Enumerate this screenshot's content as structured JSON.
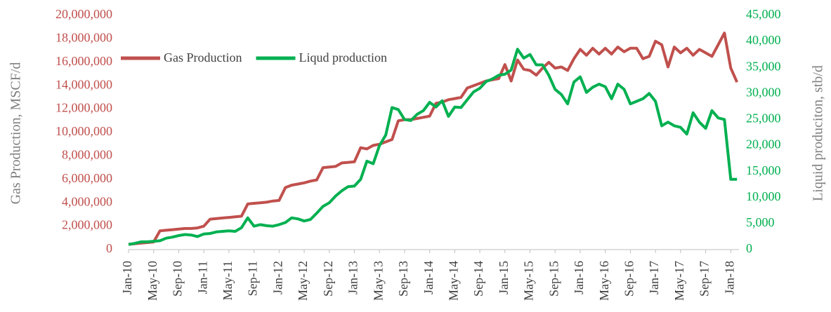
{
  "chart_data": {
    "type": "line",
    "legend": "top-left",
    "y_label": "Gas Production, MSCF/d",
    "y2_label": "Liquid produciton, stb/d",
    "categories": [
      "Jan-10",
      null,
      null,
      null,
      "May-10",
      null,
      null,
      null,
      "Sep-10",
      null,
      null,
      null,
      "Jan-11",
      null,
      null,
      null,
      "May-11",
      null,
      null,
      null,
      "Sep-11",
      null,
      null,
      null,
      "Jan-12",
      null,
      null,
      null,
      "May-12",
      null,
      null,
      null,
      "Sep-12",
      null,
      null,
      null,
      "Jan-13",
      null,
      null,
      null,
      "May-13",
      null,
      null,
      null,
      "Sep-13",
      null,
      null,
      null,
      "Jan-14",
      null,
      null,
      null,
      "May-14",
      null,
      null,
      null,
      "Sep-14",
      null,
      null,
      null,
      "Jan-15",
      null,
      null,
      null,
      "May-15",
      null,
      null,
      null,
      "Sep-15",
      null,
      null,
      null,
      "Jan-16",
      null,
      null,
      null,
      "May-16",
      null,
      null,
      null,
      "Sep-16",
      null,
      null,
      null,
      "Jan-17",
      null,
      null,
      null,
      "May-17",
      null,
      null,
      null,
      "Sep-17",
      null,
      null,
      null,
      "Jan-18",
      null
    ],
    "series": [
      {
        "name": "Gas Production",
        "color": "#c0504d",
        "axis": "y",
        "values": [
          450000,
          500000,
          550000,
          600000,
          650000,
          1600000,
          1650000,
          1700000,
          1750000,
          1800000,
          1800000,
          1850000,
          2000000,
          2600000,
          2650000,
          2700000,
          2750000,
          2800000,
          2850000,
          3900000,
          3950000,
          4000000,
          4050000,
          4150000,
          4200000,
          5300000,
          5500000,
          5600000,
          5700000,
          5850000,
          5950000,
          7000000,
          7050000,
          7100000,
          7400000,
          7450000,
          7500000,
          8700000,
          8600000,
          8900000,
          9000000,
          9200000,
          9400000,
          11000000,
          11100000,
          11100000,
          11200000,
          11300000,
          11400000,
          12500000,
          12600000,
          12800000,
          12900000,
          13000000,
          13800000,
          14000000,
          14200000,
          14400000,
          14500000,
          14600000,
          15800000,
          14400000,
          16200000,
          15400000,
          15300000,
          14900000,
          15500000,
          16000000,
          15500000,
          15600000,
          15300000,
          16300000,
          17100000,
          16600000,
          17200000,
          16700000,
          17200000,
          16700000,
          17300000,
          16900000,
          17200000,
          17200000,
          16300000,
          16500000,
          17800000,
          17500000,
          15600000,
          17300000,
          16800000,
          17200000,
          16600000,
          17100000,
          16800000,
          16500000,
          17500000,
          18500000,
          15500000,
          14300000
        ]
      },
      {
        "name": "Liqud production",
        "color": "#00b050",
        "axis": "y2",
        "values": [
          1000,
          1200,
          1500,
          1500,
          1600,
          1700,
          2200,
          2400,
          2700,
          2900,
          2800,
          2500,
          3000,
          3100,
          3400,
          3500,
          3600,
          3500,
          4200,
          6100,
          4500,
          4800,
          4600,
          4500,
          4800,
          5200,
          6100,
          5900,
          5500,
          5800,
          7000,
          8300,
          9000,
          10300,
          11300,
          12100,
          12200,
          13500,
          17000,
          16500,
          20000,
          22000,
          27300,
          26900,
          25000,
          24800,
          26000,
          26700,
          28300,
          27400,
          28600,
          25600,
          27400,
          27300,
          28800,
          30300,
          31000,
          32300,
          32800,
          33500,
          33700,
          34500,
          38500,
          36800,
          37500,
          35500,
          35500,
          33500,
          30800,
          29800,
          28000,
          32200,
          33200,
          30200,
          31200,
          31800,
          31300,
          29000,
          31800,
          30800,
          28000,
          28500,
          29000,
          30000,
          28500,
          23800,
          24500,
          23800,
          23500,
          22200,
          26300,
          24500,
          23300,
          26700,
          25300,
          25000,
          13500,
          13500
        ]
      }
    ],
    "ylim": [
      0,
      20000000
    ],
    "yticks": [
      0,
      {
        "value": 2000000,
        "label": "2,000,000"
      },
      {
        "value": 4000000,
        "label": "4,000,000"
      },
      {
        "value": 6000000,
        "label": "6,000,000"
      },
      {
        "value": 8000000,
        "label": "8,000,000"
      },
      {
        "value": 10000000,
        "label": "10,000,000"
      },
      {
        "value": 12000000,
        "label": "12,000,000"
      },
      {
        "value": 14000000,
        "label": "14,000,000"
      },
      {
        "value": 16000000,
        "label": "16,000,000"
      },
      {
        "value": 18000000,
        "label": "18,000,000"
      },
      {
        "value": 20000000,
        "label": "20,000,000"
      }
    ],
    "y2lim": [
      0,
      45000
    ],
    "y2ticks": [
      0,
      {
        "value": 5000,
        "label": "5,000"
      },
      {
        "value": 10000,
        "label": "10,000"
      },
      {
        "value": 15000,
        "label": "15,000"
      },
      {
        "value": 20000,
        "label": "20,000"
      },
      {
        "value": 25000,
        "label": "25,000"
      },
      {
        "value": 30000,
        "label": "30,000"
      },
      {
        "value": 35000,
        "label": "35,000"
      },
      {
        "value": 40000,
        "label": "40,000"
      },
      {
        "value": 45000,
        "label": "45,000"
      }
    ],
    "y_color": "#c0504d",
    "y2_color": "#00b050",
    "grid": false
  }
}
